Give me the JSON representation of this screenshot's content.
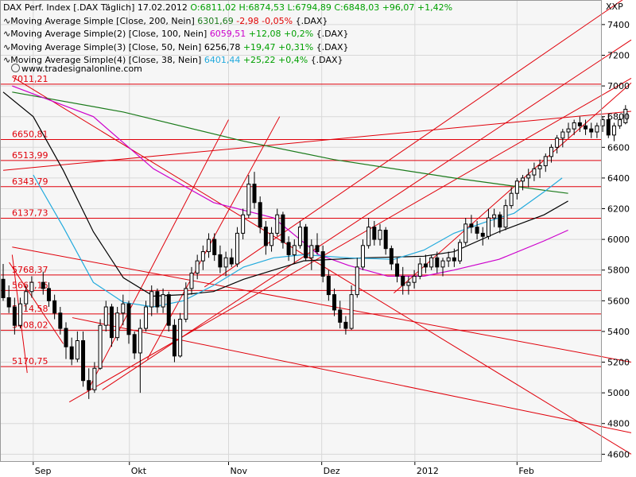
{
  "header": {
    "title": "DAX Perf. Index [.DAX Täglich]",
    "date": "17.02.2012",
    "ohlc_text": "O:6811,02 H:6874,53 L:6794,89 C:6848,03",
    "change_text": "+96,07 +1,42%"
  },
  "indicators": [
    {
      "label": "Moving Average Simple [Close, 200, Nein]",
      "value": "6301,69",
      "change": "-2,98 -0,05%",
      "suffix": "{.DAX}",
      "color": "#1a7a1a",
      "change_dir": "neg"
    },
    {
      "label": "Moving Average Simple(2) [Close, 100, Nein]",
      "value": "6059,51",
      "change": "+12,08 +0,2%",
      "suffix": "{.DAX}",
      "color": "#cc00cc",
      "change_dir": "pos"
    },
    {
      "label": "Moving Average Simple(3) [Close, 50, Nein]",
      "value": "6256,78",
      "change": "+19,47 +0,31%",
      "suffix": "{.DAX}",
      "color": "#000000",
      "change_dir": "pos"
    },
    {
      "label": "Moving Average Simple(4) [Close, 38, Nein]",
      "value": "6401,44",
      "change": "+25,22 +0,4%",
      "suffix": "{.DAX}",
      "color": "#22aadd",
      "change_dir": "pos"
    }
  ],
  "credit": "www.tradesignalonline.com",
  "chart_data": {
    "type": "candlestick",
    "y_unit_label": "XXP",
    "ylim": [
      4550,
      7560
    ],
    "yticks": [
      4600,
      4800,
      5000,
      5200,
      5400,
      5600,
      5800,
      6000,
      6200,
      6400,
      6600,
      6800,
      7000,
      7200,
      7400
    ],
    "x_labels": [
      {
        "label": "Sep",
        "x": 10
      },
      {
        "label": "Okt",
        "x": 42
      },
      {
        "label": "Nov",
        "x": 75
      },
      {
        "label": "Dez",
        "x": 106
      },
      {
        "label": "2012",
        "x": 137
      },
      {
        "label": "Feb",
        "x": 171
      }
    ],
    "x_range": [
      0,
      209
    ],
    "grid": true,
    "horizontal_levels": [
      {
        "label": "7011,21",
        "value": 7011.21
      },
      {
        "label": "6650,81",
        "value": 6650.81
      },
      {
        "label": "6513,99",
        "value": 6513.99
      },
      {
        "label": "6343,79",
        "value": 6343.79
      },
      {
        "label": "6137,73",
        "value": 6137.73
      },
      {
        "label": "5768,37",
        "value": 5768.37
      },
      {
        "label": "5667,16",
        "value": 5667.16
      },
      {
        "label": "5514,58",
        "value": 5514.58
      },
      {
        "label": "5408,02",
        "value": 5408.02
      },
      {
        "label": "5170,75",
        "value": 5170.75
      }
    ],
    "trend_lines": [
      {
        "from": [
          3,
          7060
        ],
        "to": [
          209,
          4600
        ]
      },
      {
        "from": [
          3,
          5950
        ],
        "to": [
          209,
          5200
        ]
      },
      {
        "from": [
          23,
          5490
        ],
        "to": [
          209,
          4740
        ]
      },
      {
        "from": [
          0,
          6450
        ],
        "to": [
          209,
          6835
        ]
      },
      {
        "from": [
          33,
          5020
        ],
        "to": [
          209,
          7300
        ]
      },
      {
        "from": [
          22,
          4940
        ],
        "to": [
          209,
          7050
        ]
      },
      {
        "from": [
          130,
          5650
        ],
        "to": [
          209,
          7020
        ]
      },
      {
        "from": [
          67,
          5690
        ],
        "to": [
          209,
          7600
        ]
      },
      {
        "from": [
          28,
          5010
        ],
        "to": [
          75,
          6780
        ]
      },
      {
        "from": [
          48,
          5220
        ],
        "to": [
          92,
          6800
        ]
      },
      {
        "from": [
          2,
          5850
        ],
        "to": [
          20,
          5320
        ]
      },
      {
        "from": [
          3,
          5900
        ],
        "to": [
          8,
          5130
        ]
      }
    ],
    "ma_series": [
      {
        "name": "MA200",
        "color": "#1a7a1a",
        "points": [
          [
            3,
            6960
          ],
          [
            40,
            6830
          ],
          [
            80,
            6640
          ],
          [
            110,
            6520
          ],
          [
            150,
            6400
          ],
          [
            180,
            6320
          ],
          [
            188,
            6300
          ]
        ]
      },
      {
        "name": "MA100",
        "color": "#cc00cc",
        "points": [
          [
            3,
            7000
          ],
          [
            30,
            6800
          ],
          [
            50,
            6460
          ],
          [
            70,
            6240
          ],
          [
            90,
            6140
          ],
          [
            105,
            5900
          ],
          [
            115,
            5830
          ],
          [
            128,
            5760
          ],
          [
            140,
            5760
          ],
          [
            150,
            5800
          ],
          [
            165,
            5870
          ],
          [
            180,
            5990
          ],
          [
            188,
            6060
          ]
        ]
      },
      {
        "name": "MA50",
        "color": "#000000",
        "points": [
          [
            0,
            6960
          ],
          [
            10,
            6800
          ],
          [
            20,
            6450
          ],
          [
            30,
            6050
          ],
          [
            40,
            5750
          ],
          [
            50,
            5630
          ],
          [
            60,
            5640
          ],
          [
            70,
            5660
          ],
          [
            80,
            5740
          ],
          [
            90,
            5800
          ],
          [
            100,
            5860
          ],
          [
            120,
            5880
          ],
          [
            140,
            5890
          ],
          [
            150,
            5920
          ],
          [
            165,
            6050
          ],
          [
            180,
            6160
          ],
          [
            188,
            6250
          ]
        ]
      },
      {
        "name": "MA38",
        "color": "#22aadd",
        "points": [
          [
            10,
            6420
          ],
          [
            20,
            6080
          ],
          [
            30,
            5720
          ],
          [
            40,
            5590
          ],
          [
            50,
            5560
          ],
          [
            60,
            5600
          ],
          [
            70,
            5700
          ],
          [
            80,
            5820
          ],
          [
            90,
            5880
          ],
          [
            100,
            5900
          ],
          [
            115,
            5880
          ],
          [
            130,
            5870
          ],
          [
            140,
            5930
          ],
          [
            150,
            6040
          ],
          [
            160,
            6110
          ],
          [
            170,
            6170
          ],
          [
            180,
            6310
          ],
          [
            186,
            6400
          ]
        ]
      }
    ],
    "candles": [
      [
        0,
        5740,
        5840,
        5600,
        5620
      ],
      [
        1,
        5620,
        5700,
        5520,
        5560
      ],
      [
        2,
        5560,
        5620,
        5380,
        5440
      ],
      [
        3,
        5440,
        5620,
        5420,
        5580
      ],
      [
        4,
        5580,
        5700,
        5540,
        5660
      ],
      [
        5,
        5660,
        5760,
        5620,
        5720
      ],
      [
        7,
        5720,
        5790,
        5640,
        5680
      ],
      [
        8,
        5680,
        5720,
        5560,
        5600
      ],
      [
        9,
        5600,
        5640,
        5480,
        5520
      ],
      [
        10,
        5520,
        5560,
        5380,
        5420
      ],
      [
        11,
        5420,
        5460,
        5220,
        5300
      ],
      [
        12,
        5300,
        5360,
        5180,
        5220
      ],
      [
        13,
        5220,
        5400,
        5200,
        5340
      ],
      [
        14,
        5340,
        5400,
        5040,
        5080
      ],
      [
        15,
        5080,
        5160,
        4960,
        5020
      ],
      [
        16,
        5020,
        5200,
        5000,
        5160
      ],
      [
        17,
        5160,
        5480,
        5150,
        5440
      ],
      [
        18,
        5440,
        5600,
        5400,
        5560
      ],
      [
        19,
        5560,
        5580,
        5300,
        5360
      ],
      [
        20,
        5360,
        5560,
        5340,
        5520
      ],
      [
        21,
        5520,
        5640,
        5440,
        5580
      ],
      [
        22,
        5580,
        5600,
        5320,
        5380
      ],
      [
        23,
        5380,
        5400,
        5220,
        5260
      ],
      [
        24,
        5260,
        5480,
        5000,
        5420
      ],
      [
        25,
        5420,
        5600,
        5400,
        5560
      ],
      [
        26,
        5560,
        5700,
        5500,
        5660
      ],
      [
        27,
        5660,
        5680,
        5520,
        5560
      ],
      [
        28,
        5560,
        5680,
        5520,
        5640
      ],
      [
        29,
        5640,
        5660,
        5400,
        5440
      ],
      [
        30,
        5440,
        5480,
        5200,
        5240
      ],
      [
        31,
        5240,
        5520,
        5230,
        5480
      ],
      [
        32,
        5480,
        5720,
        5460,
        5680
      ],
      [
        33,
        5680,
        5820,
        5640,
        5780
      ],
      [
        34,
        5780,
        5900,
        5740,
        5860
      ],
      [
        35,
        5860,
        5960,
        5800,
        5920
      ],
      [
        36,
        5920,
        6040,
        5880,
        6000
      ],
      [
        37,
        6000,
        6040,
        5860,
        5900
      ],
      [
        38,
        5900,
        5960,
        5780,
        5820
      ],
      [
        39,
        5820,
        5920,
        5760,
        5880
      ],
      [
        40,
        5880,
        5940,
        5820,
        5840
      ],
      [
        41,
        5840,
        6080,
        5820,
        6040
      ],
      [
        42,
        6040,
        6200,
        6000,
        6160
      ],
      [
        43,
        6160,
        6420,
        6140,
        6360
      ],
      [
        44,
        6360,
        6440,
        6200,
        6240
      ],
      [
        45,
        6240,
        6280,
        6040,
        6080
      ],
      [
        46,
        6080,
        6120,
        5900,
        5960
      ],
      [
        47,
        5960,
        6080,
        5920,
        6040
      ],
      [
        48,
        6040,
        6200,
        6020,
        6160
      ],
      [
        49,
        6160,
        6180,
        5940,
        5980
      ],
      [
        50,
        5980,
        6020,
        5860,
        5900
      ],
      [
        51,
        5900,
        6000,
        5840,
        5960
      ],
      [
        52,
        5960,
        6120,
        5940,
        6080
      ],
      [
        53,
        6080,
        6100,
        5860,
        5880
      ],
      [
        54,
        5880,
        6000,
        5800,
        5960
      ],
      [
        55,
        5960,
        6040,
        5900,
        5920
      ],
      [
        56,
        5920,
        5960,
        5720,
        5760
      ],
      [
        57,
        5760,
        5800,
        5600,
        5640
      ],
      [
        58,
        5640,
        5680,
        5500,
        5540
      ],
      [
        59,
        5540,
        5600,
        5420,
        5460
      ],
      [
        60,
        5460,
        5500,
        5380,
        5420
      ],
      [
        61,
        5420,
        5700,
        5410,
        5640
      ],
      [
        62,
        5640,
        5880,
        5620,
        5820
      ],
      [
        63,
        5820,
        6000,
        5800,
        5960
      ],
      [
        64,
        5960,
        6140,
        5940,
        6080
      ],
      [
        65,
        6080,
        6120,
        5960,
        6000
      ],
      [
        66,
        6000,
        6100,
        5960,
        6060
      ],
      [
        67,
        6060,
        6080,
        5900,
        5940
      ],
      [
        68,
        5940,
        5960,
        5800,
        5840
      ],
      [
        69,
        5840,
        5880,
        5720,
        5760
      ],
      [
        70,
        5760,
        5820,
        5640,
        5700
      ],
      [
        71,
        5700,
        5760,
        5640,
        5720
      ],
      [
        72,
        5720,
        5800,
        5680,
        5760
      ],
      [
        73,
        5760,
        5880,
        5740,
        5840
      ],
      [
        74,
        5840,
        5900,
        5780,
        5820
      ],
      [
        75,
        5820,
        5900,
        5800,
        5880
      ],
      [
        76,
        5880,
        5920,
        5780,
        5820
      ],
      [
        77,
        5820,
        5880,
        5760,
        5860
      ],
      [
        78,
        5860,
        5920,
        5820,
        5880
      ],
      [
        79,
        5880,
        5940,
        5820,
        5860
      ],
      [
        80,
        5860,
        6000,
        5840,
        5980
      ],
      [
        81,
        5980,
        6140,
        5960,
        6100
      ],
      [
        82,
        6100,
        6160,
        6040,
        6080
      ],
      [
        83,
        6080,
        6120,
        6000,
        6040
      ],
      [
        84,
        6040,
        6080,
        5960,
        6020
      ],
      [
        85,
        6020,
        6200,
        6000,
        6140
      ],
      [
        86,
        6140,
        6200,
        6080,
        6160
      ],
      [
        87,
        6160,
        6180,
        6040,
        6080
      ],
      [
        88,
        6080,
        6260,
        6060,
        6220
      ],
      [
        89,
        6220,
        6340,
        6200,
        6300
      ],
      [
        90,
        6300,
        6400,
        6260,
        6380
      ],
      [
        91,
        6380,
        6420,
        6320,
        6400
      ],
      [
        92,
        6400,
        6460,
        6340,
        6420
      ],
      [
        93,
        6420,
        6500,
        6380,
        6460
      ],
      [
        94,
        6460,
        6520,
        6400,
        6480
      ],
      [
        95,
        6480,
        6560,
        6440,
        6540
      ],
      [
        96,
        6540,
        6620,
        6500,
        6600
      ],
      [
        97,
        6600,
        6680,
        6560,
        6660
      ],
      [
        98,
        6660,
        6720,
        6600,
        6700
      ],
      [
        99,
        6700,
        6760,
        6660,
        6720
      ],
      [
        100,
        6720,
        6780,
        6680,
        6760
      ],
      [
        101,
        6760,
        6800,
        6700,
        6740
      ],
      [
        102,
        6740,
        6780,
        6680,
        6720
      ],
      [
        103,
        6720,
        6760,
        6660,
        6700
      ],
      [
        104,
        6700,
        6760,
        6660,
        6740
      ],
      [
        105,
        6740,
        6800,
        6700,
        6780
      ],
      [
        106,
        6780,
        6820,
        6660,
        6680
      ],
      [
        107,
        6680,
        6760,
        6640,
        6740
      ],
      [
        108,
        6740,
        6800,
        6720,
        6780
      ],
      [
        109,
        6760,
        6875,
        6750,
        6848
      ]
    ]
  }
}
